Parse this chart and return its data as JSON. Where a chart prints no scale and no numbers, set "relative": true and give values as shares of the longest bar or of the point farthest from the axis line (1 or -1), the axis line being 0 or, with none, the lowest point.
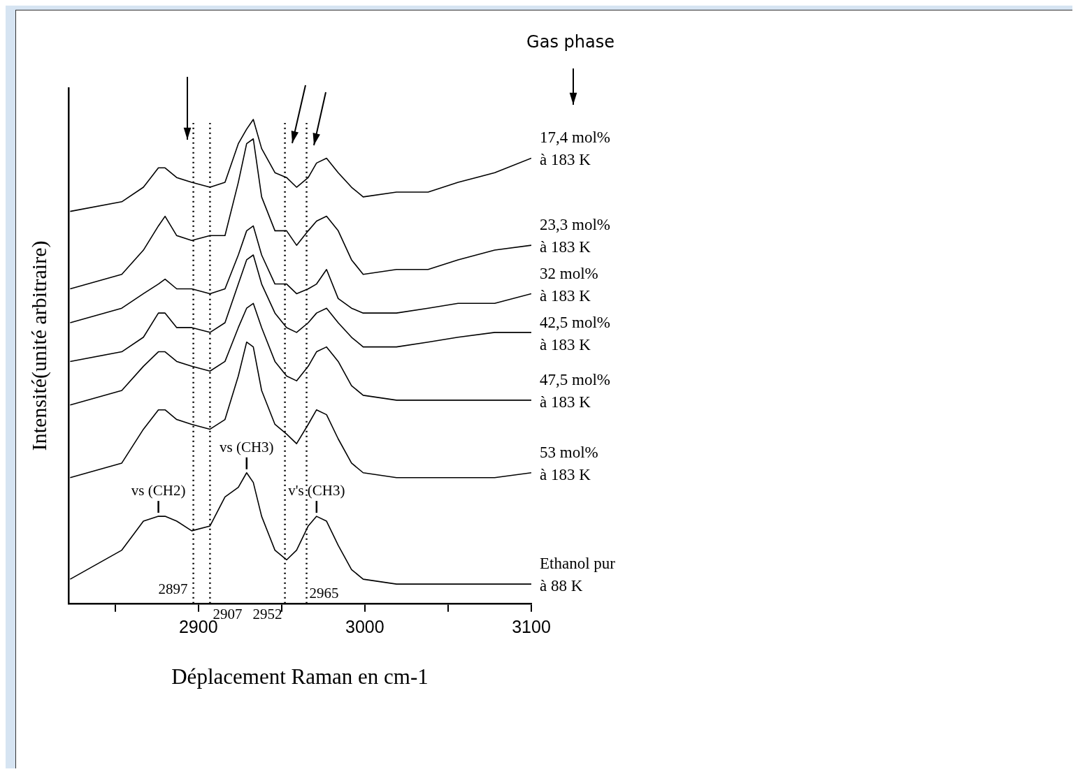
{
  "chart_data": {
    "type": "line",
    "relative": true,
    "xlabel": "Déplacement Raman en cm-1",
    "ylabel": "Intensité(unité arbitraire)",
    "xlim": [
      2822,
      3100
    ],
    "xticks": [
      {
        "value": 2850,
        "label": null
      },
      2900,
      {
        "value": 2950,
        "label": null
      },
      3000,
      {
        "value": 3050,
        "label": null
      },
      3100
    ],
    "tick_labels": "x",
    "grid": false,
    "legend": false,
    "marker": "none",
    "x": [
      2823,
      2854,
      2867,
      2876,
      2880,
      2887,
      2896,
      2907,
      2916,
      2924,
      2929,
      2933,
      2938,
      2946,
      2953,
      2959,
      2966,
      2971,
      2977,
      2984,
      2992,
      2999,
      3019,
      3038,
      3056,
      3078,
      3100
    ],
    "series": [
      {
        "name": "17,4 mol%\nà 183 K",
        "color": "#000000",
        "values": [
          0.81,
          0.83,
          0.86,
          0.9,
          0.9,
          0.88,
          0.87,
          0.86,
          0.87,
          0.95,
          0.98,
          1.0,
          0.94,
          0.89,
          0.88,
          0.86,
          0.88,
          0.91,
          0.92,
          0.89,
          0.86,
          0.84,
          0.85,
          0.85,
          0.87,
          0.89,
          0.92
        ]
      },
      {
        "name": "23,3 mol%\nà 183 K",
        "color": "#000000",
        "values": [
          0.65,
          0.68,
          0.73,
          0.78,
          0.8,
          0.76,
          0.75,
          0.76,
          0.76,
          0.87,
          0.95,
          0.96,
          0.84,
          0.77,
          0.77,
          0.74,
          0.77,
          0.79,
          0.8,
          0.77,
          0.71,
          0.68,
          0.69,
          0.69,
          0.71,
          0.73,
          0.74
        ]
      },
      {
        "name": "32 mol%\nà 183 K",
        "color": "#000000",
        "values": [
          0.58,
          0.61,
          0.64,
          0.66,
          0.67,
          0.65,
          0.65,
          0.64,
          0.65,
          0.72,
          0.77,
          0.78,
          0.72,
          0.66,
          0.66,
          0.64,
          0.65,
          0.66,
          0.69,
          0.63,
          0.61,
          0.6,
          0.6,
          0.61,
          0.62,
          0.62,
          0.64
        ]
      },
      {
        "name": "42,5 mol%\nà 183 K",
        "color": "#000000",
        "values": [
          0.5,
          0.52,
          0.55,
          0.6,
          0.6,
          0.57,
          0.57,
          0.56,
          0.58,
          0.66,
          0.71,
          0.72,
          0.66,
          0.6,
          0.57,
          0.56,
          0.58,
          0.6,
          0.61,
          0.58,
          0.55,
          0.53,
          0.53,
          0.54,
          0.55,
          0.56,
          0.56
        ]
      },
      {
        "name": "47,5 mol%\nà 183 K",
        "color": "#000000",
        "values": [
          0.41,
          0.44,
          0.49,
          0.52,
          0.52,
          0.5,
          0.49,
          0.48,
          0.5,
          0.57,
          0.61,
          0.62,
          0.57,
          0.5,
          0.47,
          0.46,
          0.49,
          0.52,
          0.53,
          0.5,
          0.45,
          0.43,
          0.42,
          0.42,
          0.42,
          0.42,
          0.42
        ]
      },
      {
        "name": "53 mol%\nà 183 K",
        "color": "#000000",
        "values": [
          0.26,
          0.29,
          0.36,
          0.4,
          0.4,
          0.38,
          0.37,
          0.36,
          0.38,
          0.47,
          0.54,
          0.53,
          0.44,
          0.37,
          0.35,
          0.33,
          0.37,
          0.4,
          0.39,
          0.34,
          0.29,
          0.27,
          0.26,
          0.26,
          0.26,
          0.26,
          0.27
        ]
      },
      {
        "name": "Ethanol pur\nà 88 K",
        "color": "#000000",
        "values": [
          0.05,
          0.11,
          0.17,
          0.18,
          0.18,
          0.17,
          0.15,
          0.16,
          0.22,
          0.24,
          0.27,
          0.25,
          0.18,
          0.11,
          0.09,
          0.11,
          0.16,
          0.18,
          0.17,
          0.12,
          0.07,
          0.05,
          0.04,
          0.04,
          0.04,
          0.04,
          0.04
        ]
      }
    ],
    "ref_lines": [
      {
        "axis": "x",
        "value": 2897,
        "label": "2897",
        "color": "#000000",
        "line_style": "dotted"
      },
      {
        "axis": "x",
        "value": 2907,
        "label": "2907",
        "color": "#000000",
        "line_style": "dotted"
      },
      {
        "axis": "x",
        "value": 2952,
        "label": "2952",
        "color": "#000000",
        "line_style": "dotted"
      },
      {
        "axis": "x",
        "value": 2965,
        "label": "2965",
        "color": "#000000",
        "line_style": "dotted"
      }
    ],
    "annotations": [
      {
        "text": "vs (CH2)",
        "x": 2876,
        "y": 0.18
      },
      {
        "text": "vs (CH3)",
        "x": 2929,
        "y": 0.27
      },
      {
        "text": "v's (CH3)",
        "x": 2971,
        "y": 0.18
      },
      "Gas phase"
    ]
  }
}
